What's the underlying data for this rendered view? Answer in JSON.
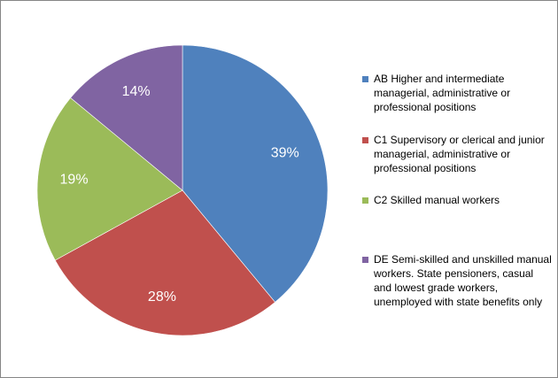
{
  "chart_data": {
    "type": "pie",
    "title": "",
    "slices": [
      {
        "label": "AB Higher and intermediate managerial, administrative or professional positions",
        "value": 39,
        "display": "39%",
        "color": "#4F81BD"
      },
      {
        "label": "C1 Supervisory or clerical and junior managerial, administrative or professional positions",
        "value": 28,
        "display": "28%",
        "color": "#C0504D"
      },
      {
        "label": "C2 Skilled manual workers",
        "value": 19,
        "display": "19%",
        "color": "#9BBB59"
      },
      {
        "label": "DE Semi-skilled and unskilled manual workers. State pensioners, casual and lowest grade workers, unemployed with state benefits only",
        "value": 14,
        "display": "14%",
        "color": "#8064A2"
      }
    ],
    "legend_position": "right"
  }
}
